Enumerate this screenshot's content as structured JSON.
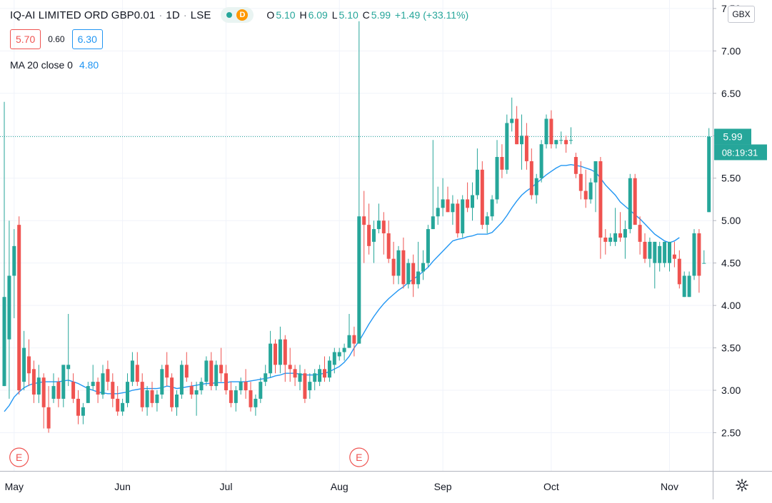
{
  "header": {
    "symbol": "IQ-AI LIMITED ORD GBP0.01",
    "interval": "1D",
    "exchange": "LSE",
    "separator": "·",
    "delayed_badge": "D",
    "ohlc": {
      "o_label": "O",
      "o": "5.10",
      "h_label": "H",
      "h": "6.09",
      "l_label": "L",
      "l": "5.10",
      "c_label": "C",
      "c": "5.99",
      "change": "+1.49 (+33.11%)"
    },
    "bid": "5.70",
    "spread": "0.60",
    "ask": "6.30",
    "ma_label": "MA 20 close 0",
    "ma_value": "4.80"
  },
  "currency": "GBX",
  "price_label": "5.99",
  "countdown_label": "08:19:31",
  "colors": {
    "up": "#26a69a",
    "down": "#ef5350",
    "ma": "#2196f3",
    "grid": "#f0f3fa",
    "axis_text": "#131722",
    "earnings_marker": "#ef5350"
  },
  "chart_data": {
    "type": "candlestick",
    "ylim": [
      2.05,
      7.6
    ],
    "yticks": [
      2.5,
      3.0,
      3.5,
      4.0,
      4.5,
      5.0,
      5.5,
      6.0,
      6.5,
      7.0,
      7.5
    ],
    "ytick_labels": [
      "2.50",
      "3.00",
      "3.50",
      "4.00",
      "4.50",
      "5.00",
      "5.50",
      "6.00",
      "6.50",
      "7.00",
      "7.50"
    ],
    "xticks": [
      {
        "label": "May",
        "index": 2
      },
      {
        "label": "Jun",
        "index": 24
      },
      {
        "label": "Jul",
        "index": 45
      },
      {
        "label": "Aug",
        "index": 68
      },
      {
        "label": "Sep",
        "index": 89
      },
      {
        "label": "Oct",
        "index": 111
      },
      {
        "label": "Nov",
        "index": 135
      }
    ],
    "earnings_markers": [
      {
        "label": "E",
        "index": 3
      },
      {
        "label": "E",
        "index": 72
      }
    ],
    "last_price": 5.99,
    "candles": [
      [
        3.05,
        6.4,
        3.05,
        4.1
      ],
      [
        3.6,
        5.0,
        2.9,
        4.35
      ],
      [
        4.35,
        4.9,
        3.85,
        4.7
      ],
      [
        4.95,
        5.05,
        2.95,
        3.0
      ],
      [
        3.1,
        3.7,
        3.0,
        3.5
      ],
      [
        3.4,
        3.6,
        3.05,
        3.2
      ],
      [
        3.25,
        3.35,
        2.85,
        2.95
      ],
      [
        2.95,
        3.3,
        2.85,
        3.15
      ],
      [
        3.15,
        3.2,
        2.55,
        2.8
      ],
      [
        2.8,
        3.05,
        2.5,
        2.55
      ],
      [
        2.9,
        3.2,
        2.85,
        3.05
      ],
      [
        3.1,
        3.15,
        2.8,
        2.9
      ],
      [
        2.9,
        3.3,
        2.8,
        3.3
      ],
      [
        3.25,
        3.9,
        3.05,
        3.3
      ],
      [
        3.1,
        3.2,
        2.85,
        2.9
      ],
      [
        2.9,
        3.0,
        2.6,
        2.7
      ],
      [
        2.7,
        2.85,
        2.6,
        2.8
      ],
      [
        2.85,
        3.1,
        2.85,
        3.05
      ],
      [
        3.05,
        3.3,
        3.0,
        3.1
      ],
      [
        3.1,
        3.15,
        2.85,
        2.95
      ],
      [
        2.95,
        3.3,
        2.9,
        3.2
      ],
      [
        3.25,
        3.35,
        3.0,
        3.1
      ],
      [
        3.1,
        3.2,
        2.8,
        2.9
      ],
      [
        2.9,
        3.05,
        2.7,
        2.75
      ],
      [
        2.75,
        2.9,
        2.7,
        2.85
      ],
      [
        2.85,
        3.2,
        2.8,
        3.1
      ],
      [
        3.1,
        3.45,
        3.05,
        3.35
      ],
      [
        3.3,
        3.45,
        3.05,
        3.1
      ],
      [
        3.1,
        3.2,
        2.75,
        2.8
      ],
      [
        2.8,
        3.05,
        2.7,
        3.0
      ],
      [
        3.0,
        3.1,
        2.8,
        2.85
      ],
      [
        2.85,
        3.0,
        2.75,
        2.95
      ],
      [
        2.95,
        3.3,
        2.9,
        3.25
      ],
      [
        3.3,
        3.45,
        3.05,
        3.15
      ],
      [
        3.15,
        3.2,
        2.75,
        2.8
      ],
      [
        2.8,
        3.0,
        2.7,
        2.95
      ],
      [
        2.95,
        3.35,
        2.9,
        3.3
      ],
      [
        3.3,
        3.45,
        3.1,
        3.15
      ],
      [
        3.05,
        3.1,
        2.9,
        2.95
      ],
      [
        2.95,
        3.1,
        2.7,
        3.0
      ],
      [
        3.0,
        3.15,
        2.95,
        3.1
      ],
      [
        3.1,
        3.4,
        3.05,
        3.35
      ],
      [
        3.35,
        3.45,
        3.0,
        3.05
      ],
      [
        3.05,
        3.35,
        3.0,
        3.3
      ],
      [
        3.3,
        3.5,
        3.1,
        3.2
      ],
      [
        3.2,
        3.3,
        2.95,
        3.0
      ],
      [
        3.0,
        3.1,
        2.8,
        2.85
      ],
      [
        2.85,
        3.05,
        2.75,
        3.0
      ],
      [
        3.0,
        3.15,
        2.95,
        3.1
      ],
      [
        3.1,
        3.25,
        2.9,
        3.0
      ],
      [
        3.0,
        3.1,
        2.75,
        2.8
      ],
      [
        2.8,
        2.95,
        2.7,
        2.9
      ],
      [
        2.9,
        3.15,
        2.85,
        3.1
      ],
      [
        3.1,
        3.3,
        3.05,
        3.2
      ],
      [
        3.2,
        3.7,
        3.15,
        3.55
      ],
      [
        3.55,
        3.6,
        3.2,
        3.3
      ],
      [
        3.3,
        3.75,
        3.2,
        3.6
      ],
      [
        3.6,
        3.65,
        3.1,
        3.3
      ],
      [
        3.3,
        3.5,
        3.1,
        3.25
      ],
      [
        3.25,
        3.3,
        3.05,
        3.15
      ],
      [
        3.1,
        3.3,
        3.0,
        3.2
      ],
      [
        3.2,
        3.25,
        2.85,
        2.9
      ],
      [
        3.0,
        3.2,
        2.9,
        3.1
      ],
      [
        3.1,
        3.25,
        3.0,
        3.2
      ],
      [
        3.1,
        3.3,
        3.05,
        3.25
      ],
      [
        3.25,
        3.4,
        3.1,
        3.15
      ],
      [
        3.15,
        3.4,
        3.1,
        3.35
      ],
      [
        3.3,
        3.5,
        3.2,
        3.45
      ],
      [
        3.4,
        3.5,
        3.35,
        3.45
      ],
      [
        3.45,
        3.55,
        3.35,
        3.5
      ],
      [
        3.5,
        3.9,
        3.5,
        3.65
      ],
      [
        3.65,
        3.75,
        3.4,
        3.55
      ],
      [
        3.55,
        7.35,
        3.55,
        5.05
      ],
      [
        5.05,
        5.35,
        4.5,
        4.95
      ],
      [
        4.95,
        5.2,
        4.6,
        4.7
      ],
      [
        4.75,
        5.0,
        4.5,
        4.9
      ],
      [
        4.9,
        5.2,
        4.85,
        5.0
      ],
      [
        5.0,
        5.1,
        4.6,
        4.85
      ],
      [
        4.85,
        5.0,
        4.5,
        4.55
      ],
      [
        4.55,
        4.75,
        4.25,
        4.35
      ],
      [
        4.35,
        4.7,
        4.25,
        4.65
      ],
      [
        4.65,
        4.8,
        4.2,
        4.25
      ],
      [
        4.25,
        4.55,
        4.2,
        4.5
      ],
      [
        4.5,
        4.6,
        4.1,
        4.25
      ],
      [
        4.25,
        4.75,
        4.2,
        4.4
      ],
      [
        4.4,
        4.65,
        4.3,
        4.5
      ],
      [
        4.5,
        4.95,
        4.45,
        4.9
      ],
      [
        4.9,
        5.95,
        4.9,
        5.05
      ],
      [
        5.05,
        5.4,
        4.95,
        5.15
      ],
      [
        5.15,
        5.5,
        5.05,
        5.25
      ],
      [
        5.25,
        5.4,
        5.1,
        5.1
      ],
      [
        5.1,
        5.3,
        4.95,
        5.2
      ],
      [
        5.2,
        5.25,
        4.8,
        4.85
      ],
      [
        4.85,
        5.3,
        4.8,
        5.25
      ],
      [
        5.25,
        5.45,
        5.1,
        5.15
      ],
      [
        5.15,
        5.45,
        5.0,
        5.3
      ],
      [
        5.3,
        5.85,
        5.25,
        5.6
      ],
      [
        5.6,
        5.7,
        4.9,
        4.95
      ],
      [
        4.95,
        5.1,
        4.85,
        5.05
      ],
      [
        5.05,
        5.3,
        5.0,
        5.25
      ],
      [
        5.25,
        5.95,
        5.2,
        5.75
      ],
      [
        5.75,
        5.9,
        5.5,
        5.6
      ],
      [
        5.6,
        6.25,
        5.55,
        6.15
      ],
      [
        6.15,
        6.45,
        6.05,
        6.2
      ],
      [
        6.2,
        6.35,
        5.9,
        5.9
      ],
      [
        5.9,
        6.25,
        5.6,
        6.0
      ],
      [
        6.0,
        6.15,
        5.6,
        5.7
      ],
      [
        5.7,
        5.85,
        5.25,
        5.3
      ],
      [
        5.3,
        5.55,
        5.2,
        5.5
      ],
      [
        5.5,
        5.95,
        5.45,
        5.9
      ],
      [
        5.9,
        6.25,
        5.85,
        6.2
      ],
      [
        6.2,
        6.3,
        5.85,
        5.9
      ],
      [
        5.9,
        5.95,
        5.85,
        5.95
      ],
      [
        5.95,
        6.05,
        5.9,
        5.95
      ],
      [
        5.95,
        6.0,
        5.8,
        5.9
      ],
      [
        5.95,
        6.1,
        5.9,
        5.95
      ],
      [
        5.75,
        5.8,
        5.5,
        5.55
      ],
      [
        5.55,
        5.7,
        5.25,
        5.35
      ],
      [
        5.35,
        5.6,
        5.15,
        5.25
      ],
      [
        5.25,
        5.5,
        5.2,
        5.45
      ],
      [
        5.45,
        5.7,
        5.1,
        5.7
      ],
      [
        5.7,
        5.75,
        4.55,
        4.8
      ],
      [
        4.8,
        4.9,
        4.6,
        4.75
      ],
      [
        4.75,
        4.85,
        4.7,
        4.8
      ],
      [
        4.75,
        5.15,
        4.7,
        4.85
      ],
      [
        4.85,
        5.1,
        4.75,
        4.8
      ],
      [
        4.8,
        5.0,
        4.55,
        4.9
      ],
      [
        4.9,
        5.55,
        4.85,
        5.5
      ],
      [
        5.5,
        5.55,
        5.0,
        4.95
      ],
      [
        4.95,
        5.05,
        4.6,
        4.75
      ],
      [
        4.75,
        4.85,
        4.5,
        4.55
      ],
      [
        4.55,
        4.8,
        4.45,
        4.75
      ],
      [
        4.5,
        4.75,
        4.2,
        4.75
      ],
      [
        4.5,
        4.75,
        4.4,
        4.7
      ],
      [
        4.5,
        4.75,
        4.45,
        4.75
      ],
      [
        4.5,
        4.75,
        4.4,
        4.75
      ],
      [
        4.6,
        4.75,
        4.45,
        4.55
      ],
      [
        4.55,
        4.65,
        4.2,
        4.25
      ],
      [
        4.1,
        4.4,
        4.1,
        4.35
      ],
      [
        4.1,
        4.4,
        4.1,
        4.35
      ],
      [
        4.35,
        4.9,
        4.3,
        4.85
      ],
      [
        4.85,
        4.9,
        4.15,
        4.35
      ],
      [
        4.5,
        4.65,
        4.5,
        4.5
      ],
      [
        5.1,
        6.09,
        5.1,
        5.99
      ]
    ],
    "ma20": [
      2.75,
      2.82,
      2.92,
      2.98,
      3.03,
      3.06,
      3.08,
      3.09,
      3.1,
      3.1,
      3.1,
      3.1,
      3.11,
      3.12,
      3.1,
      3.08,
      3.05,
      3.02,
      3.0,
      2.98,
      2.97,
      2.96,
      2.96,
      2.96,
      2.97,
      2.98,
      3.0,
      3.01,
      3.02,
      3.02,
      3.02,
      3.02,
      3.03,
      3.05,
      3.04,
      3.02,
      3.03,
      3.04,
      3.05,
      3.06,
      3.07,
      3.08,
      3.08,
      3.09,
      3.09,
      3.09,
      3.1,
      3.1,
      3.1,
      3.1,
      3.11,
      3.12,
      3.13,
      3.14,
      3.15,
      3.17,
      3.18,
      3.2,
      3.2,
      3.2,
      3.19,
      3.18,
      3.18,
      3.18,
      3.19,
      3.2,
      3.22,
      3.25,
      3.28,
      3.33,
      3.4,
      3.5,
      3.58,
      3.68,
      3.78,
      3.87,
      3.95,
      4.02,
      4.08,
      4.13,
      4.18,
      4.22,
      4.27,
      4.31,
      4.35,
      4.4,
      4.45,
      4.52,
      4.58,
      4.64,
      4.7,
      4.76,
      4.78,
      4.79,
      4.81,
      4.82,
      4.84,
      4.84,
      4.84,
      4.86,
      4.92,
      4.98,
      5.06,
      5.15,
      5.23,
      5.3,
      5.35,
      5.39,
      5.44,
      5.49,
      5.54,
      5.58,
      5.62,
      5.65,
      5.65,
      5.66,
      5.65,
      5.64,
      5.62,
      5.6,
      5.57,
      5.5,
      5.42,
      5.36,
      5.3,
      5.22,
      5.17,
      5.12,
      5.07,
      5.02,
      4.96,
      4.9,
      4.84,
      4.8,
      4.76,
      4.74,
      4.76,
      4.8
    ]
  }
}
